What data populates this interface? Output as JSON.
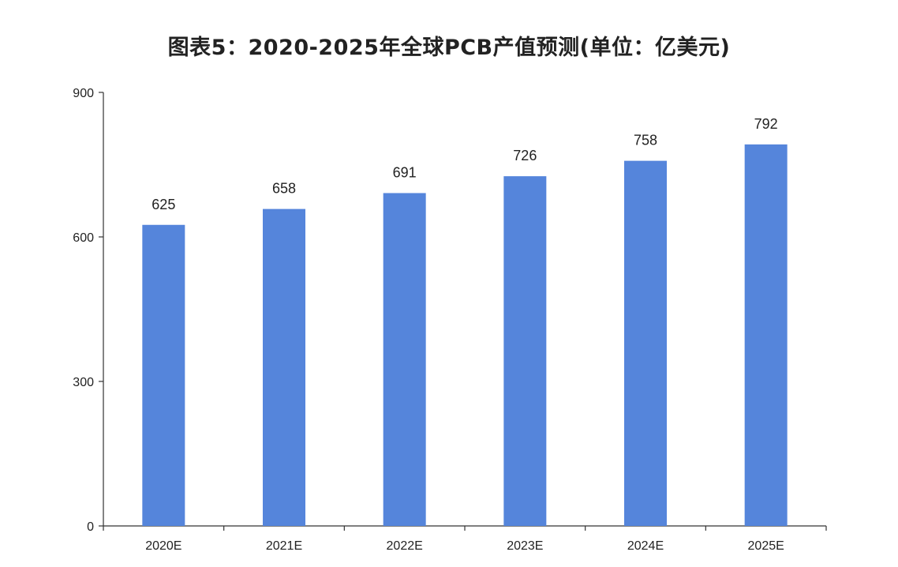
{
  "chart_data": {
    "type": "bar",
    "title": "图表5：2020-2025年全球PCB产值预测(单位：亿美元)",
    "categories": [
      "2020E",
      "2021E",
      "2022E",
      "2023E",
      "2024E",
      "2025E"
    ],
    "values": [
      625,
      658,
      691,
      726,
      758,
      792
    ],
    "data_labels": [
      "625",
      "658",
      "691",
      "726",
      "758",
      "792"
    ],
    "y_ticks": [
      0,
      300,
      600,
      900
    ],
    "y_tick_labels": [
      "0",
      "300",
      "600",
      "900"
    ],
    "ylim": [
      0,
      900
    ],
    "xlabel": "",
    "ylabel": "",
    "grid": false,
    "legend": "none",
    "bar_color": "#5585db",
    "axis_color": "#333333"
  }
}
